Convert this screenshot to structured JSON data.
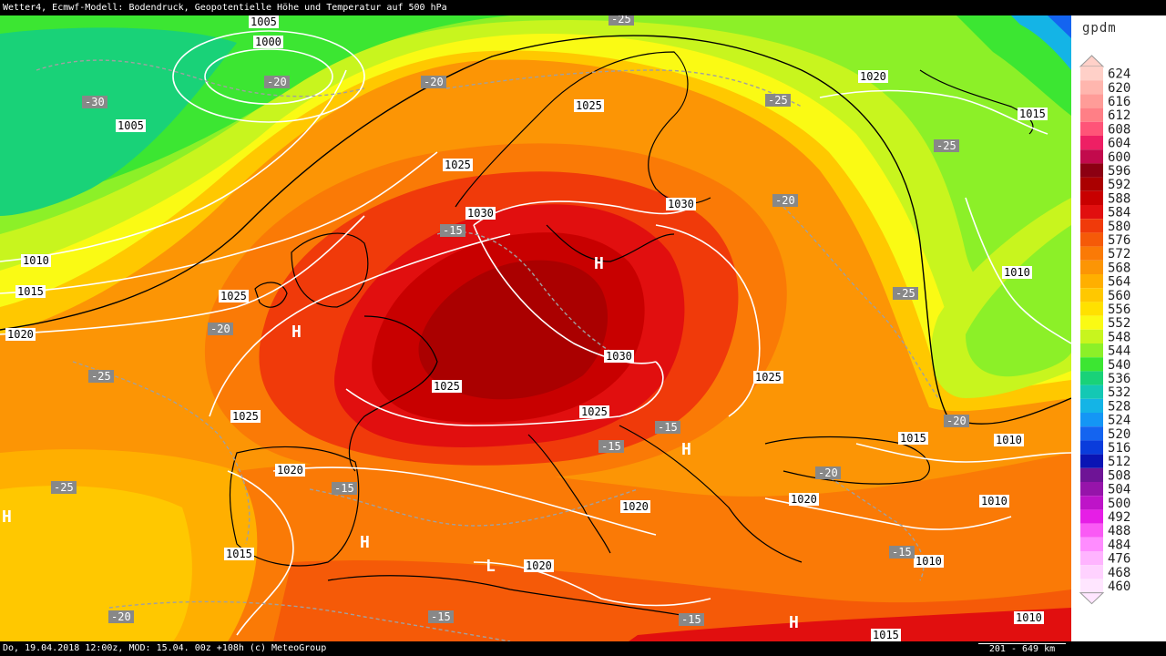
{
  "header": {
    "title": "Wetter4, Ecmwf-Modell: Bodendruck, Geopotentielle Höhe und Temperatur auf 500 hPa"
  },
  "footer": {
    "info": "Do, 19.04.2018 12:00z, MOD: 15.04. 00z +108h (c) MeteoGroup",
    "scale": "201 - 649 km"
  },
  "legend": {
    "unit": "gpdm",
    "levels": [
      {
        "value": "624",
        "color": "#ffd0c8"
      },
      {
        "value": "620",
        "color": "#ffb6ae"
      },
      {
        "value": "616",
        "color": "#ff9c98"
      },
      {
        "value": "612",
        "color": "#ff7f86"
      },
      {
        "value": "608",
        "color": "#ff5478"
      },
      {
        "value": "604",
        "color": "#ee1f64"
      },
      {
        "value": "600",
        "color": "#c20a4c"
      },
      {
        "value": "596",
        "color": "#8c0012"
      },
      {
        "value": "592",
        "color": "#aa0000"
      },
      {
        "value": "588",
        "color": "#c80000"
      },
      {
        "value": "584",
        "color": "#e10f0f"
      },
      {
        "value": "580",
        "color": "#f03a0a"
      },
      {
        "value": "576",
        "color": "#f55a08"
      },
      {
        "value": "572",
        "color": "#fa7a06"
      },
      {
        "value": "568",
        "color": "#fc9505"
      },
      {
        "value": "564",
        "color": "#ffaf00"
      },
      {
        "value": "560",
        "color": "#ffc800"
      },
      {
        "value": "556",
        "color": "#ffe100"
      },
      {
        "value": "552",
        "color": "#fafa14"
      },
      {
        "value": "548",
        "color": "#c8f51e"
      },
      {
        "value": "544",
        "color": "#8cf028"
      },
      {
        "value": "540",
        "color": "#3ce632"
      },
      {
        "value": "536",
        "color": "#19d278"
      },
      {
        "value": "532",
        "color": "#14c8b4"
      },
      {
        "value": "528",
        "color": "#14b4e6"
      },
      {
        "value": "524",
        "color": "#1496f5"
      },
      {
        "value": "520",
        "color": "#1464f0"
      },
      {
        "value": "516",
        "color": "#0a3cdc"
      },
      {
        "value": "512",
        "color": "#0a14b4"
      },
      {
        "value": "508",
        "color": "#6e1496"
      },
      {
        "value": "504",
        "color": "#9614aa"
      },
      {
        "value": "500",
        "color": "#be14c8"
      },
      {
        "value": "492",
        "color": "#e61ee6"
      },
      {
        "value": "488",
        "color": "#fa5af5"
      },
      {
        "value": "484",
        "color": "#ff8cff"
      },
      {
        "value": "476",
        "color": "#ffb4ff"
      },
      {
        "value": "468",
        "color": "#ffd2ff"
      },
      {
        "value": "460",
        "color": "#ffe6ff"
      }
    ]
  },
  "map": {
    "pressure_labels": [
      "1005",
      "1000",
      "1005",
      "1025",
      "1020",
      "1015",
      "1025",
      "1030",
      "1030",
      "1010",
      "1015",
      "1020",
      "1025",
      "1025",
      "1025",
      "1030",
      "1025",
      "1025",
      "1020",
      "1020",
      "1015",
      "1010",
      "1010",
      "1020",
      "1010",
      "1010",
      "1015",
      "1020",
      "1015",
      "1010"
    ],
    "temp_labels": [
      "-25",
      "-20",
      "-30",
      "-20",
      "-25",
      "-25",
      "-15",
      "-20",
      "-20",
      "-25",
      "-25",
      "-15",
      "-15",
      "-20",
      "-15",
      "-20",
      "-25",
      "-20",
      "-15",
      "-15",
      "-15"
    ],
    "high_symbol": "H",
    "low_symbol": "L",
    "palette": {
      "ocean_green": "#3ce632",
      "core_red": "#c80000",
      "dark_red": "#aa0000",
      "isobar": "#ffffff",
      "isotherm": "#a0a0a0",
      "coast": "#000000"
    }
  }
}
